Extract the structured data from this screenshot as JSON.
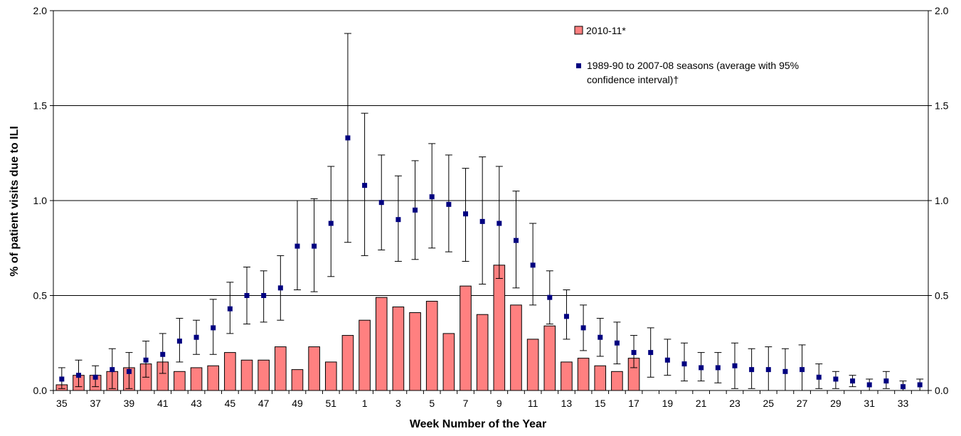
{
  "chart_data": {
    "type": "bar",
    "title": "",
    "xlabel": "Week Number of the Year",
    "ylabel": "% of patient visits due to ILI",
    "ylim": [
      0,
      2.0
    ],
    "y_ticks": [
      "0.0",
      "0.5",
      "1.0",
      "1.5",
      "2.0"
    ],
    "y_tick_values": [
      0,
      0.5,
      1.0,
      1.5,
      2.0
    ],
    "grid": "horizontal",
    "right_axis_mirrored": true,
    "legend_position": "top-right",
    "weeks": [
      "35",
      "36",
      "37",
      "38",
      "39",
      "40",
      "41",
      "42",
      "43",
      "44",
      "45",
      "46",
      "47",
      "48",
      "49",
      "50",
      "51",
      "52",
      "1",
      "2",
      "3",
      "4",
      "5",
      "6",
      "7",
      "8",
      "9",
      "10",
      "11",
      "12",
      "13",
      "14",
      "15",
      "16",
      "17",
      "18",
      "19",
      "20",
      "21",
      "22",
      "23",
      "24",
      "25",
      "26",
      "27",
      "28",
      "29",
      "30",
      "31",
      "32",
      "33",
      "34"
    ],
    "x_tick_labels": [
      "35",
      "37",
      "39",
      "41",
      "43",
      "45",
      "47",
      "49",
      "51",
      "1",
      "3",
      "5",
      "7",
      "9",
      "11",
      "13",
      "15",
      "17",
      "19",
      "21",
      "23",
      "25",
      "27",
      "29",
      "31",
      "33"
    ],
    "series": [
      {
        "name": "2010-11*",
        "kind": "bar",
        "color": "#ff8080",
        "values": [
          0.03,
          0.08,
          0.08,
          0.1,
          0.12,
          0.14,
          0.15,
          0.1,
          0.12,
          0.13,
          0.2,
          0.16,
          0.16,
          0.23,
          0.11,
          0.23,
          0.15,
          0.29,
          0.37,
          0.49,
          0.44,
          0.41,
          0.47,
          0.3,
          0.55,
          0.4,
          0.66,
          0.45,
          0.27,
          0.34,
          0.15,
          0.17,
          0.13,
          0.1,
          0.17
        ]
      },
      {
        "name": "1989-90 to 2007-08 seasons (average with 95% confidence interval)†",
        "kind": "point-with-error",
        "color": "#000080",
        "values": [
          0.06,
          0.08,
          0.07,
          0.11,
          0.1,
          0.16,
          0.19,
          0.26,
          0.28,
          0.33,
          0.43,
          0.5,
          0.5,
          0.54,
          0.76,
          0.76,
          0.88,
          1.33,
          1.08,
          0.99,
          0.9,
          0.95,
          1.02,
          0.98,
          0.93,
          0.89,
          0.88,
          0.79,
          0.66,
          0.49,
          0.39,
          0.33,
          0.28,
          0.25,
          0.2,
          0.2,
          0.16,
          0.14,
          0.12,
          0.12,
          0.13,
          0.11,
          0.11,
          0.1,
          0.11,
          0.07,
          0.06,
          0.05,
          0.03,
          0.05,
          0.02,
          0.03
        ],
        "lower": [
          0.01,
          0.02,
          0.02,
          0.01,
          0.01,
          0.07,
          0.09,
          0.15,
          0.19,
          0.19,
          0.3,
          0.35,
          0.36,
          0.37,
          0.53,
          0.52,
          0.6,
          0.78,
          0.71,
          0.74,
          0.68,
          0.69,
          0.75,
          0.73,
          0.68,
          0.56,
          0.59,
          0.54,
          0.45,
          0.35,
          0.27,
          0.21,
          0.18,
          0.14,
          0.12,
          0.07,
          0.08,
          0.05,
          0.05,
          0.04,
          0.01,
          0.01,
          0.0,
          0.0,
          0.0,
          0.01,
          0.01,
          0.02,
          0.0,
          0.01,
          0.0,
          0.0
        ],
        "upper": [
          0.12,
          0.16,
          0.13,
          0.22,
          0.2,
          0.26,
          0.3,
          0.38,
          0.37,
          0.48,
          0.57,
          0.65,
          0.63,
          0.71,
          1.0,
          1.01,
          1.18,
          1.88,
          1.46,
          1.24,
          1.13,
          1.21,
          1.3,
          1.24,
          1.17,
          1.23,
          1.18,
          1.05,
          0.88,
          0.63,
          0.53,
          0.45,
          0.38,
          0.36,
          0.29,
          0.33,
          0.27,
          0.25,
          0.2,
          0.2,
          0.25,
          0.22,
          0.23,
          0.22,
          0.24,
          0.14,
          0.1,
          0.08,
          0.06,
          0.1,
          0.05,
          0.06
        ]
      }
    ]
  }
}
